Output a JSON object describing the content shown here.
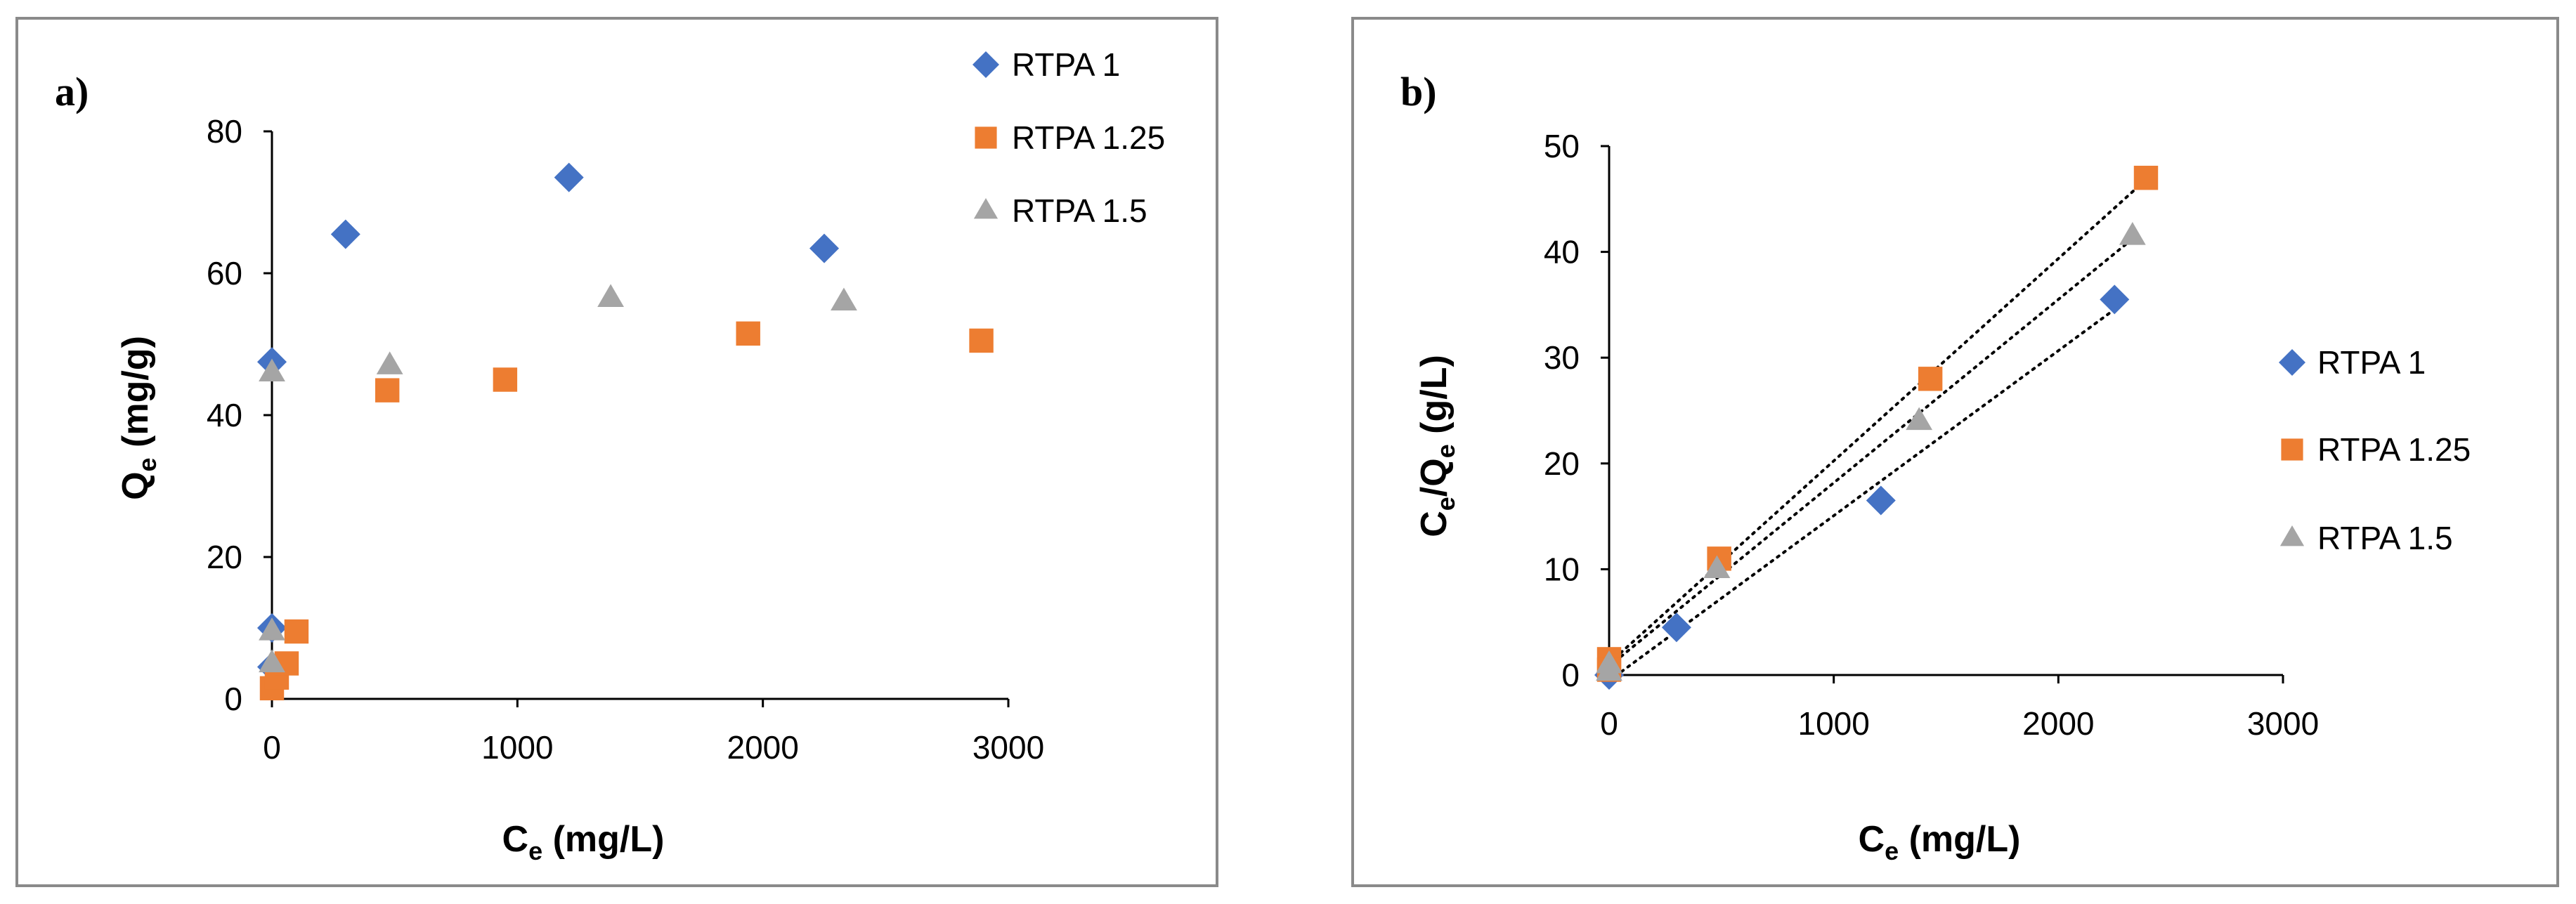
{
  "colors": {
    "RTPA 1": "#4472C4",
    "RTPA 1.25": "#ED7D31",
    "RTPA 1.5": "#A5A5A5"
  },
  "markers": {
    "RTPA 1": "diamond",
    "RTPA 1.25": "square",
    "RTPA 1.5": "triangle"
  },
  "chart_data": [
    {
      "panel_label": "a)",
      "type": "scatter",
      "xlabel_main": "C",
      "xlabel_sub": "e",
      "xlabel_unit": " (mg/L)",
      "ylabel_main": "Q",
      "ylabel_sub": "e",
      "ylabel_unit": " (mg/g)",
      "xlim": [
        0,
        3000
      ],
      "ylim": [
        0,
        80
      ],
      "xticks": [
        0,
        1000,
        2000,
        3000
      ],
      "yticks": [
        0,
        20,
        40,
        60,
        80
      ],
      "legend_position": "top-right",
      "series": [
        {
          "name": "RTPA 1",
          "x": [
            0,
            0,
            0,
            300,
            1210,
            2250
          ],
          "y": [
            47.5,
            10,
            4.5,
            65.5,
            73.5,
            63.5
          ]
        },
        {
          "name": "RTPA 1.25",
          "x": [
            0,
            20,
            60,
            100,
            470,
            950,
            1940,
            2890
          ],
          "y": [
            1.5,
            3,
            5,
            9.5,
            43.5,
            45,
            51.5,
            50.5
          ]
        },
        {
          "name": "RTPA 1.5",
          "x": [
            0,
            0,
            0,
            480,
            1380,
            2330
          ],
          "y": [
            46,
            9.5,
            5,
            47,
            56.5,
            56
          ]
        }
      ]
    },
    {
      "panel_label": "b)",
      "type": "scatter",
      "xlabel_main": "C",
      "xlabel_sub": "e",
      "xlabel_unit": " (mg/L)",
      "ylabel_main": "C",
      "ylabel_sub": "e",
      "ylabel_mid": "/Q",
      "ylabel_sub2": "e",
      "ylabel_unit": " (g/L)",
      "xlim": [
        0,
        3000
      ],
      "ylim": [
        0,
        50
      ],
      "xticks": [
        0,
        1000,
        2000,
        3000
      ],
      "yticks": [
        0,
        10,
        20,
        30,
        40,
        50
      ],
      "legend_position": "right",
      "trendlines": true,
      "series": [
        {
          "name": "RTPA 1",
          "x": [
            0,
            300,
            1210,
            2250
          ],
          "y": [
            0,
            4.5,
            16.5,
            35.5
          ]
        },
        {
          "name": "RTPA 1.25",
          "x": [
            0,
            0,
            490,
            1430,
            2390
          ],
          "y": [
            1.5,
            0.5,
            11,
            28,
            47
          ]
        },
        {
          "name": "RTPA 1.5",
          "x": [
            0,
            0,
            480,
            1380,
            2330
          ],
          "y": [
            1,
            0.3,
            10,
            24,
            41.5
          ]
        }
      ]
    }
  ]
}
